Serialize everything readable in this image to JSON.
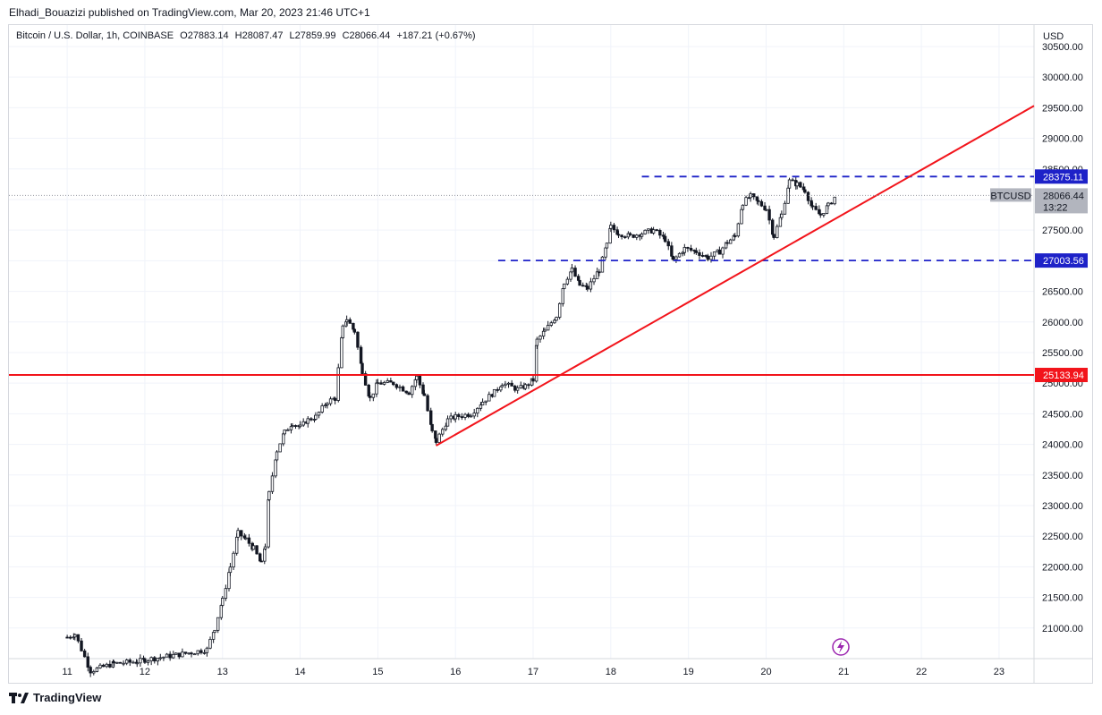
{
  "header": {
    "publish_line": "Elhadi_Bouazizi published on TradingView.com, Mar 20, 2023 21:46 UTC+1"
  },
  "legend": {
    "symbol": "Bitcoin / U.S. Dollar, 1h, COINBASE",
    "open": "O27883.14",
    "high": "H28087.47",
    "low": "L27859.99",
    "close": "C28066.44",
    "change": "+187.21 (+0.67%)"
  },
  "footer": {
    "brand": "TradingView"
  },
  "colors": {
    "candle": "#131722",
    "support": "#f2141b",
    "dashed": "#1e22c8",
    "tag_blue": "#1e22c8",
    "tag_red": "#f2141b",
    "tag_grey": "#b2b5be",
    "grid": "#f0f3fa"
  },
  "chart_data": {
    "type": "candlestick",
    "currency": "USD",
    "symbol_tag": "BTCUSD",
    "last_price": "28066.44",
    "countdown": "13:22",
    "x_ticks": [
      "11",
      "12",
      "13",
      "14",
      "15",
      "16",
      "17",
      "18",
      "19",
      "20",
      "21",
      "22",
      "23"
    ],
    "y_ticks": [
      "21000.00",
      "21500.00",
      "22000.00",
      "22500.00",
      "23000.00",
      "23500.00",
      "24000.00",
      "24500.00",
      "25000.00",
      "25500.00",
      "26000.00",
      "26500.00",
      "27000.00",
      "27500.00",
      "28000.00",
      "28500.00",
      "29000.00",
      "29500.00",
      "30000.00",
      "30500.00"
    ],
    "ylim": [
      20500,
      30850
    ],
    "xlim_days": [
      10.25,
      23.45
    ],
    "horizontal_levels": [
      {
        "value": 28375.11,
        "label": "28375.11",
        "style": "dashed",
        "from_day": 18.4
      },
      {
        "value": 27003.56,
        "label": "27003.56",
        "style": "dashed",
        "from_day": 16.55
      },
      {
        "value": 25133.94,
        "label": "25133.94",
        "style": "solid",
        "from_day": 10.25
      }
    ],
    "trendline": {
      "day1": 15.75,
      "price1": 23980,
      "day2": 23.45,
      "price2": 29530
    },
    "path_points": [
      [
        11.0,
        20850
      ],
      [
        11.1,
        20900
      ],
      [
        11.3,
        20300
      ],
      [
        11.6,
        20420
      ],
      [
        11.9,
        20450
      ],
      [
        12.0,
        20480
      ],
      [
        12.2,
        20520
      ],
      [
        12.4,
        20560
      ],
      [
        12.6,
        20600
      ],
      [
        12.8,
        20650
      ],
      [
        12.9,
        21000
      ],
      [
        13.0,
        21450
      ],
      [
        13.1,
        22000
      ],
      [
        13.2,
        22550
      ],
      [
        13.3,
        22450
      ],
      [
        13.4,
        22300
      ],
      [
        13.5,
        22050
      ],
      [
        13.55,
        22350
      ],
      [
        13.6,
        23200
      ],
      [
        13.7,
        23900
      ],
      [
        13.8,
        24200
      ],
      [
        13.9,
        24350
      ],
      [
        14.0,
        24280
      ],
      [
        14.1,
        24400
      ],
      [
        14.2,
        24450
      ],
      [
        14.35,
        24700
      ],
      [
        14.45,
        24750
      ],
      [
        14.55,
        25900
      ],
      [
        14.6,
        26050
      ],
      [
        14.7,
        25850
      ],
      [
        14.8,
        25200
      ],
      [
        14.9,
        24750
      ],
      [
        15.0,
        25000
      ],
      [
        15.2,
        25000
      ],
      [
        15.4,
        24850
      ],
      [
        15.5,
        25100
      ],
      [
        15.6,
        24800
      ],
      [
        15.7,
        24200
      ],
      [
        15.75,
        24050
      ],
      [
        15.9,
        24400
      ],
      [
        16.0,
        24450
      ],
      [
        16.2,
        24500
      ],
      [
        16.35,
        24700
      ],
      [
        16.5,
        24850
      ],
      [
        16.6,
        25000
      ],
      [
        16.8,
        24900
      ],
      [
        16.9,
        24950
      ],
      [
        17.0,
        25050
      ],
      [
        17.05,
        25700
      ],
      [
        17.15,
        25850
      ],
      [
        17.3,
        26100
      ],
      [
        17.4,
        26650
      ],
      [
        17.5,
        26850
      ],
      [
        17.6,
        26600
      ],
      [
        17.7,
        26550
      ],
      [
        17.85,
        26850
      ],
      [
        17.95,
        27250
      ],
      [
        18.0,
        27550
      ],
      [
        18.1,
        27450
      ],
      [
        18.25,
        27400
      ],
      [
        18.4,
        27450
      ],
      [
        18.55,
        27500
      ],
      [
        18.7,
        27350
      ],
      [
        18.8,
        27000
      ],
      [
        18.95,
        27200
      ],
      [
        19.1,
        27150
      ],
      [
        19.25,
        27050
      ],
      [
        19.4,
        27150
      ],
      [
        19.5,
        27300
      ],
      [
        19.6,
        27400
      ],
      [
        19.7,
        27950
      ],
      [
        19.8,
        28050
      ],
      [
        19.9,
        27950
      ],
      [
        20.0,
        27850
      ],
      [
        20.1,
        27400
      ],
      [
        20.2,
        27750
      ],
      [
        20.3,
        28300
      ],
      [
        20.4,
        28250
      ],
      [
        20.5,
        28150
      ],
      [
        20.6,
        27850
      ],
      [
        20.7,
        27750
      ],
      [
        20.8,
        27900
      ],
      [
        20.9,
        28066
      ]
    ]
  }
}
